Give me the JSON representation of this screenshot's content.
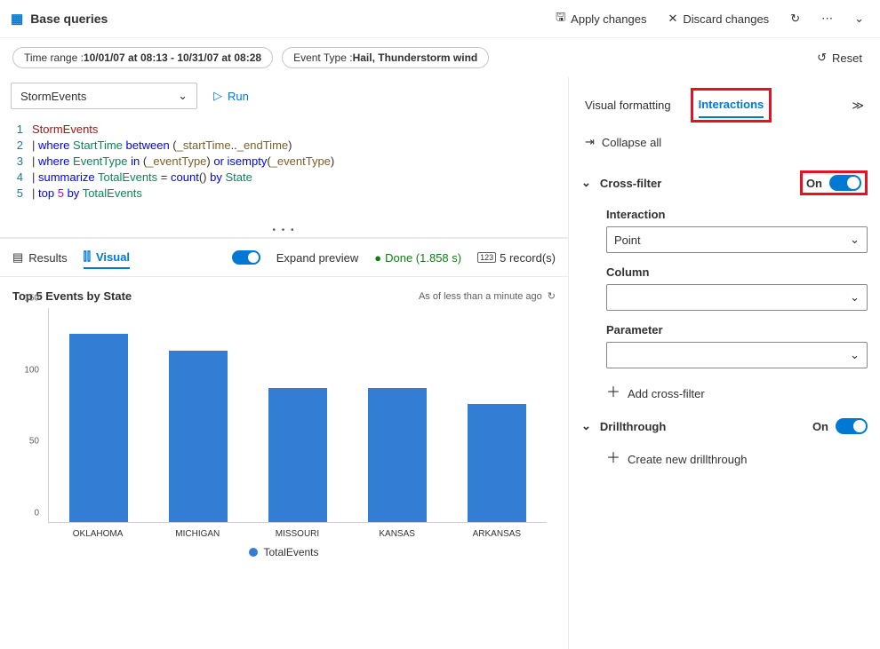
{
  "header": {
    "title": "Base queries",
    "apply": "Apply changes",
    "discard": "Discard changes"
  },
  "filters": {
    "time_label": "Time range : ",
    "time_value": "10/01/07 at 08:13 - 10/31/07 at 08:28",
    "type_label": "Event Type : ",
    "type_value": "Hail, Thunderstorm wind",
    "reset": "Reset"
  },
  "query": {
    "source": "StormEvents",
    "run": "Run",
    "lines": {
      "l1": "StormEvents",
      "l2a": "where",
      "l2b": "StartTime",
      "l2c": "between",
      "l2d": "_startTime",
      "l2e": "_endTime",
      "l3a": "where",
      "l3b": "EventType",
      "l3c": "in",
      "l3d": "_eventType",
      "l3e": "or",
      "l3f": "isempty",
      "l3g": "_eventType",
      "l4a": "summarize",
      "l4b": "TotalEvents",
      "l4c": "count",
      "l4d": "by",
      "l4e": "State",
      "l5a": "top",
      "l5b": "5",
      "l5c": "by",
      "l5d": "TotalEvents"
    }
  },
  "results_bar": {
    "results": "Results",
    "visual": "Visual",
    "expand": "Expand preview",
    "done": "Done (1.858 s)",
    "records": "5 record(s)"
  },
  "chart": {
    "title": "Top 5 Events by State",
    "subtitle": "As of less than a minute ago",
    "type": "bar",
    "ymax": 150,
    "yticks": [
      0,
      50,
      100,
      150
    ],
    "bar_color": "#337ed4",
    "categories": [
      "OKLAHOMA",
      "MICHIGAN",
      "MISSOURI",
      "KANSAS",
      "ARKANSAS"
    ],
    "values": [
      132,
      120,
      94,
      94,
      83
    ],
    "legend": "TotalEvents"
  },
  "panel": {
    "tab_visual": "Visual formatting",
    "tab_interactions": "Interactions",
    "collapse_all": "Collapse all",
    "crossfilter": {
      "title": "Cross-filter",
      "on": "On",
      "interaction_label": "Interaction",
      "interaction_value": "Point",
      "column_label": "Column",
      "parameter_label": "Parameter",
      "add": "Add cross-filter"
    },
    "drill": {
      "title": "Drillthrough",
      "on": "On",
      "create": "Create new drillthrough"
    }
  }
}
